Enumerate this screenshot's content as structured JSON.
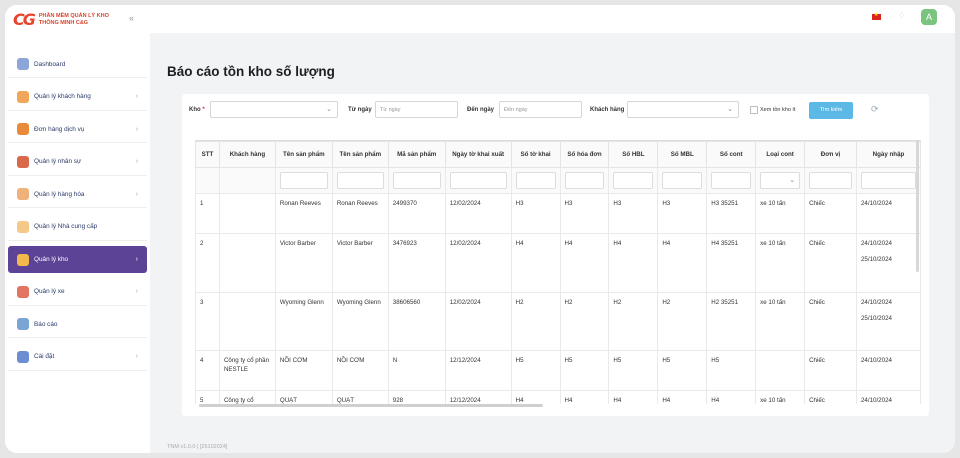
{
  "app": {
    "logo_mark": "CG",
    "logo_line1": "PHẦN MỀM QUẢN LÝ KHO",
    "logo_line2": "THÔNG MINH C&G",
    "collapse_icon": "double-chevron-left-icon"
  },
  "sidebar": {
    "items": [
      {
        "label": "Dashboard",
        "icon": "dashboard-icon",
        "color": "#8ba6d8",
        "chevron": false
      },
      {
        "label": "Quản lý khách hàng",
        "icon": "customer-icon",
        "color": "#f2a65a",
        "chevron": true
      },
      {
        "label": "Đơn hàng dịch vụ",
        "icon": "order-icon",
        "color": "#e88a3a",
        "chevron": true
      },
      {
        "label": "Quản lý nhân sự",
        "icon": "staff-icon",
        "color": "#d9694a",
        "chevron": true
      },
      {
        "label": "Quản lý hàng hóa",
        "icon": "goods-icon",
        "color": "#f0b27a",
        "chevron": true
      },
      {
        "label": "Quản lý Nhà cung cấp",
        "icon": "supplier-icon",
        "color": "#f4c98a",
        "chevron": false
      },
      {
        "label": "Quản lý kho",
        "icon": "warehouse-icon",
        "color": "#f2b84b",
        "chevron": true,
        "active": true
      },
      {
        "label": "Quản lý xe",
        "icon": "vehicle-icon",
        "color": "#e3745f",
        "chevron": true
      },
      {
        "label": "Báo cáo",
        "icon": "report-icon",
        "color": "#7aa3d6",
        "chevron": false
      },
      {
        "label": "Cài đặt",
        "icon": "settings-icon",
        "color": "#6b8fd0",
        "chevron": true
      }
    ]
  },
  "topbar": {
    "avatar_letter": "A",
    "avatar_color": "#7ac47f",
    "flag_icon": "vietnam-flag-icon",
    "bell_icon": "bell-icon"
  },
  "page": {
    "title": "Báo cáo tồn kho số lượng"
  },
  "filters": {
    "kho_label": "Kho",
    "kho_required": "*",
    "kho_value": "",
    "from_label": "Từ ngày",
    "from_placeholder": "Từ ngày",
    "to_label": "Đến ngày",
    "to_placeholder": "Đến ngày",
    "customer_label": "Khách hàng",
    "customer_value": "",
    "low_stock_label": "Xem tồn kho ít",
    "search_button": "Tìm kiếm"
  },
  "table": {
    "columns": [
      "STT",
      "Khách hàng",
      "Tên sản phẩm",
      "Tên sản phẩm",
      "Mã sản phẩm",
      "Ngày tờ khai xuất",
      "Số tờ khai",
      "Số hóa đơn",
      "Số HBL",
      "Số MBL",
      "Số cont",
      "Loại cont",
      "Đơn vị",
      "Ngày nhập"
    ],
    "rows": [
      {
        "stt": "1",
        "customer": "",
        "product1": "Ronan Reeves",
        "product2": "Ronan Reeves",
        "code": "2499370",
        "export_date": "12/02/2024",
        "declaration": "H3",
        "invoice": "H3",
        "hbl": "H3",
        "mbl": "H3",
        "cont": "H3 35251",
        "cont_type": "xe 10 tấn",
        "unit": "Chiếc",
        "import_dates": [
          "24/10/2024"
        ]
      },
      {
        "stt": "2",
        "customer": "",
        "product1": "Victor Barber",
        "product2": "Victor Barber",
        "code": "3476923",
        "export_date": "12/02/2024",
        "declaration": "H4",
        "invoice": "H4",
        "hbl": "H4",
        "mbl": "H4",
        "cont": "H4 35251",
        "cont_type": "xe 10 tấn",
        "unit": "Chiếc",
        "import_dates": [
          "24/10/2024",
          "25/10/2024"
        ]
      },
      {
        "stt": "3",
        "customer": "",
        "product1": "Wyoming Glenn",
        "product2": "Wyoming Glenn",
        "code": "38606560",
        "export_date": "12/02/2024",
        "declaration": "H2",
        "invoice": "H2",
        "hbl": "H2",
        "mbl": "H2",
        "cont": "H2 35251",
        "cont_type": "xe 10 tấn",
        "unit": "Chiếc",
        "import_dates": [
          "24/10/2024",
          "25/10/2024"
        ]
      },
      {
        "stt": "4",
        "customer": "Công ty cổ phần NESTLE",
        "product1": "NỒI CƠM",
        "product2": "NỒI CƠM",
        "code": "N",
        "export_date": "12/12/2024",
        "declaration": "H5",
        "invoice": "H5",
        "hbl": "H5",
        "mbl": "H5",
        "cont": "H5",
        "cont_type": "",
        "unit": "Chiếc",
        "import_dates": [
          "24/10/2024"
        ]
      },
      {
        "stt": "5",
        "customer": "Công ty cổ",
        "product1": "QUẠT",
        "product2": "QUẠT",
        "code": "928",
        "export_date": "12/12/2024",
        "declaration": "H4",
        "invoice": "H4",
        "hbl": "H4",
        "mbl": "H4",
        "cont": "H4",
        "cont_type": "xe 10 tấn",
        "unit": "Chiếc",
        "import_dates": [
          "24/10/2024"
        ]
      }
    ]
  },
  "footer": {
    "version": "TNM v1.0.0 | [25102024]"
  }
}
